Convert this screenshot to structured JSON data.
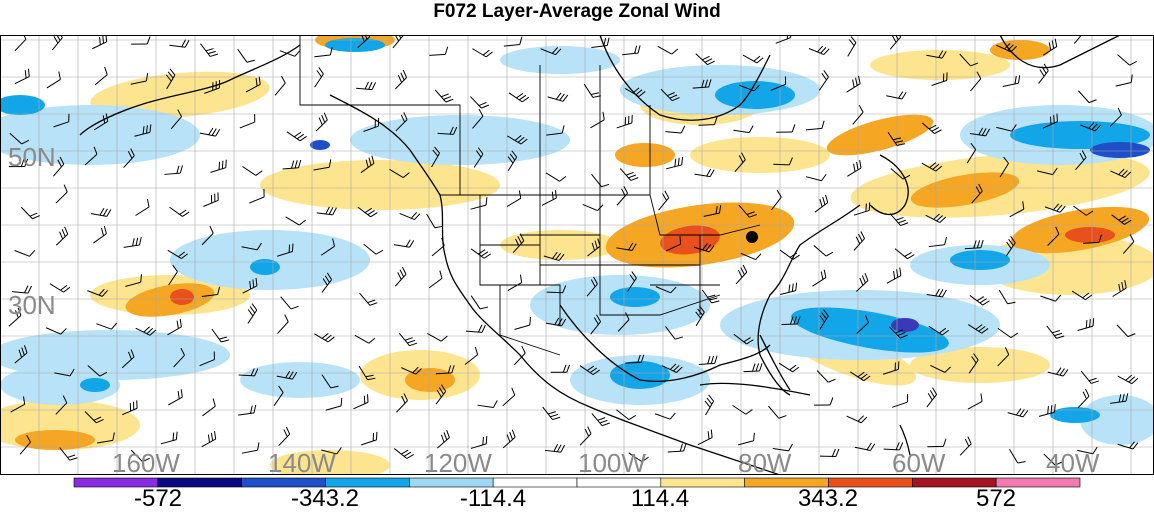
{
  "title": "F072 Layer-Average Zonal Wind",
  "map": {
    "region": "North America and adjacent Pacific and Atlantic oceans",
    "grid_color": "#9a9a9a",
    "coast_color": "#000000",
    "lat_labels": [
      "50N",
      "30N"
    ],
    "lon_labels": [
      "160W",
      "140W",
      "120W",
      "100W",
      "80W",
      "60W",
      "40W"
    ],
    "location_marker": "black-dot"
  },
  "colorbar": {
    "colors": [
      "#8a2be2",
      "#0a0a80",
      "#1e4fc8",
      "#12a6e8",
      "#9ed8f5",
      "#ffffff",
      "#ffffff",
      "#fde48f",
      "#f5a623",
      "#e8501c",
      "#a3141e",
      "#f27ab0"
    ],
    "labels": [
      "-572",
      "-343.2",
      "-114.4",
      "114.4",
      "343.2",
      "572"
    ]
  }
}
